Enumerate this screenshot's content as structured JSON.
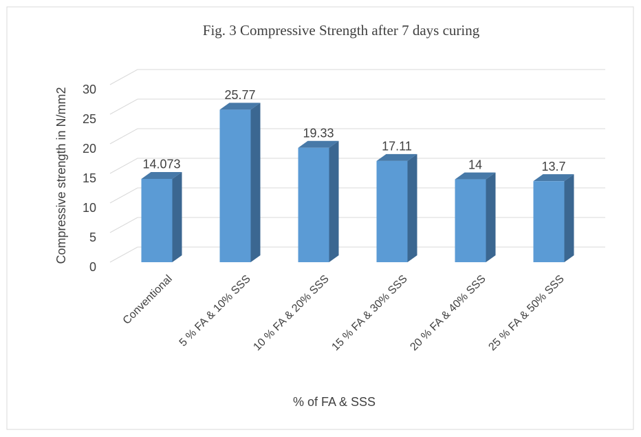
{
  "chart_data": {
    "type": "bar",
    "title": "Fig. 3 Compressive Strength after 7 days curing",
    "x_label": "% of FA & SSS",
    "y_label": "Compressive strength in N/mm2",
    "categories": [
      "Conventional",
      "5 % FA & 10% SSS",
      "10 % FA & 20% SSS",
      "15 % FA & 30% SSS",
      "20 % FA & 40% SSS",
      "25 % FA & 50% SSS"
    ],
    "values": [
      14.073,
      25.77,
      19.33,
      17.11,
      14,
      13.7
    ],
    "color": "#5b9bd5",
    "ylim": [
      0,
      30
    ],
    "yticks": [
      0,
      5,
      10,
      15,
      20,
      25,
      30
    ],
    "grid": true
  }
}
